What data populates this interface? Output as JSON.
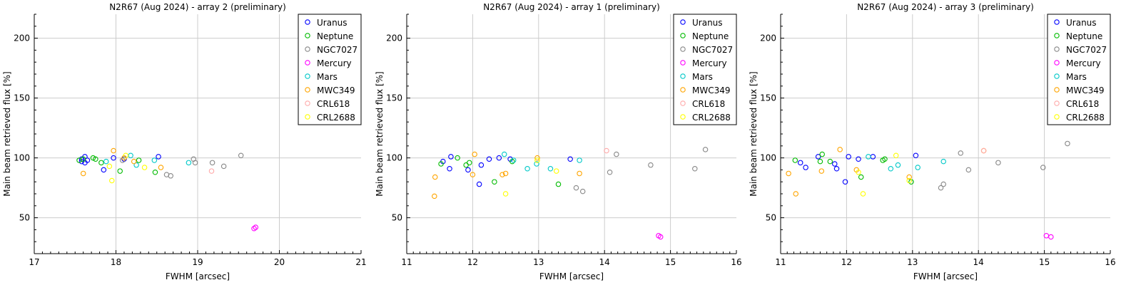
{
  "legend_entries": [
    {
      "name": "Uranus",
      "color": "#0000ff"
    },
    {
      "name": "Neptune",
      "color": "#00bb00"
    },
    {
      "name": "NGC7027",
      "color": "#888888"
    },
    {
      "name": "Mercury",
      "color": "#ff00ff"
    },
    {
      "name": "Mars",
      "color": "#00c8c8"
    },
    {
      "name": "MWC349",
      "color": "#ffa500"
    },
    {
      "name": "CRL618",
      "color": "#ffaaaa"
    },
    {
      "name": "CRL2688",
      "color": "#ffff00"
    }
  ],
  "chart_data": [
    {
      "type": "scatter",
      "title": "N2R67 (Aug 2024) - array 2 (preliminary)",
      "xlabel": "FWHM [arcsec]",
      "ylabel": "Main beam retrieved flux [%]",
      "xlim": [
        17,
        21
      ],
      "ylim": [
        20,
        220
      ],
      "xticks": [
        17,
        18,
        19,
        20,
        21
      ],
      "yticks": [
        50,
        100,
        150,
        200
      ],
      "grid": true,
      "legend": "top-right",
      "series": [
        {
          "name": "Uranus",
          "points": [
            [
              17.58,
              99
            ],
            [
              17.62,
              101
            ],
            [
              17.65,
              98
            ],
            [
              17.62,
              96
            ],
            [
              17.85,
              90
            ],
            [
              17.97,
              100
            ],
            [
              18.1,
              99
            ],
            [
              18.52,
              101
            ],
            [
              17.58,
              97
            ]
          ]
        },
        {
          "name": "Neptune",
          "points": [
            [
              17.55,
              98
            ],
            [
              17.6,
              99
            ],
            [
              17.72,
              100
            ],
            [
              17.75,
              99
            ],
            [
              17.82,
              96
            ],
            [
              18.05,
              89
            ],
            [
              18.28,
              98
            ],
            [
              18.48,
              88
            ]
          ]
        },
        {
          "name": "NGC7027",
          "points": [
            [
              18.08,
              98
            ],
            [
              18.62,
              86
            ],
            [
              18.67,
              85
            ],
            [
              18.95,
              99
            ],
            [
              18.97,
              96
            ],
            [
              19.18,
              96
            ],
            [
              19.32,
              93
            ],
            [
              19.53,
              102
            ]
          ]
        },
        {
          "name": "Mercury",
          "points": [
            [
              19.69,
              41
            ],
            [
              19.71,
              42
            ]
          ]
        },
        {
          "name": "Mars",
          "points": [
            [
              17.88,
              97
            ],
            [
              18.18,
              102
            ],
            [
              18.25,
              94
            ],
            [
              18.47,
              98
            ],
            [
              18.89,
              96
            ]
          ]
        },
        {
          "name": "MWC349",
          "points": [
            [
              17.6,
              87
            ],
            [
              17.97,
              106
            ],
            [
              18.1,
              100
            ],
            [
              18.22,
              97
            ],
            [
              18.55,
              92
            ]
          ]
        },
        {
          "name": "CRL618",
          "points": [
            [
              19.17,
              89
            ]
          ]
        },
        {
          "name": "CRL2688",
          "points": [
            [
              17.92,
              93
            ],
            [
              17.95,
              81
            ],
            [
              18.12,
              102
            ],
            [
              18.35,
              92
            ]
          ]
        }
      ]
    },
    {
      "type": "scatter",
      "title": "N2R67 (Aug 2024) - array 1 (preliminary)",
      "xlabel": "FWHM [arcsec]",
      "ylabel": "Main beam retrieved flux [%]",
      "xlim": [
        11,
        16
      ],
      "ylim": [
        20,
        220
      ],
      "xticks": [
        11,
        12,
        13,
        14,
        15,
        16
      ],
      "yticks": [
        50,
        100,
        150,
        200
      ],
      "grid": true,
      "legend": "top-right",
      "series": [
        {
          "name": "Uranus",
          "points": [
            [
              11.55,
              97
            ],
            [
              11.65,
              91
            ],
            [
              11.67,
              101
            ],
            [
              11.93,
              90
            ],
            [
              12.1,
              78
            ],
            [
              12.13,
              94
            ],
            [
              12.25,
              99
            ],
            [
              12.4,
              100
            ],
            [
              12.57,
              99
            ],
            [
              13.48,
              99
            ]
          ]
        },
        {
          "name": "Neptune",
          "points": [
            [
              11.52,
              95
            ],
            [
              11.77,
              100
            ],
            [
              11.9,
              94
            ],
            [
              11.95,
              96
            ],
            [
              12.33,
              80
            ],
            [
              12.6,
              97
            ],
            [
              13.3,
              78
            ]
          ]
        },
        {
          "name": "NGC7027",
          "points": [
            [
              13.57,
              75
            ],
            [
              13.67,
              72
            ],
            [
              14.08,
              88
            ],
            [
              14.18,
              103
            ],
            [
              14.7,
              94
            ],
            [
              15.37,
              91
            ],
            [
              15.53,
              107
            ]
          ]
        },
        {
          "name": "Mercury",
          "points": [
            [
              14.82,
              35
            ],
            [
              14.85,
              34
            ]
          ]
        },
        {
          "name": "Mars",
          "points": [
            [
              12.48,
              103
            ],
            [
              12.62,
              98
            ],
            [
              12.83,
              91
            ],
            [
              12.97,
              95
            ],
            [
              13.18,
              91
            ],
            [
              13.62,
              98
            ]
          ]
        },
        {
          "name": "MWC349",
          "points": [
            [
              11.42,
              68
            ],
            [
              11.43,
              84
            ],
            [
              12.0,
              86
            ],
            [
              12.03,
              103
            ],
            [
              12.45,
              86
            ],
            [
              12.5,
              87
            ],
            [
              12.98,
              100
            ],
            [
              13.62,
              87
            ]
          ]
        },
        {
          "name": "CRL618",
          "points": [
            [
              14.03,
              106
            ]
          ]
        },
        {
          "name": "CRL2688",
          "points": [
            [
              12.5,
              70
            ],
            [
              12.98,
              98
            ],
            [
              13.27,
              89
            ]
          ]
        }
      ]
    },
    {
      "type": "scatter",
      "title": "N2R67 (Aug 2024) - array 3 (preliminary)",
      "xlabel": "FWHM [arcsec]",
      "ylabel": "Main beam retrieved flux [%]",
      "xlim": [
        11,
        16
      ],
      "ylim": [
        20,
        220
      ],
      "xticks": [
        11,
        12,
        13,
        14,
        15,
        16
      ],
      "yticks": [
        50,
        100,
        150,
        200
      ],
      "grid": true,
      "legend": "top-right",
      "series": [
        {
          "name": "Uranus",
          "points": [
            [
              11.3,
              96
            ],
            [
              11.38,
              92
            ],
            [
              11.57,
              101
            ],
            [
              11.82,
              95
            ],
            [
              11.85,
              91
            ],
            [
              11.98,
              80
            ],
            [
              12.03,
              101
            ],
            [
              12.18,
              99
            ],
            [
              12.4,
              101
            ],
            [
              13.05,
              102
            ]
          ]
        },
        {
          "name": "Neptune",
          "points": [
            [
              11.22,
              98
            ],
            [
              11.6,
              97
            ],
            [
              11.63,
              103
            ],
            [
              11.75,
              97
            ],
            [
              12.22,
              84
            ],
            [
              12.55,
              98
            ],
            [
              12.58,
              99
            ],
            [
              12.98,
              80
            ]
          ]
        },
        {
          "name": "NGC7027",
          "points": [
            [
              13.43,
              75
            ],
            [
              13.47,
              78
            ],
            [
              13.73,
              104
            ],
            [
              13.85,
              90
            ],
            [
              14.3,
              96
            ],
            [
              14.98,
              92
            ],
            [
              15.35,
              112
            ]
          ]
        },
        {
          "name": "Mercury",
          "points": [
            [
              15.03,
              35
            ],
            [
              15.1,
              34
            ]
          ]
        },
        {
          "name": "Mars",
          "points": [
            [
              12.33,
              101
            ],
            [
              12.67,
              91
            ],
            [
              12.78,
              94
            ],
            [
              13.08,
              92
            ],
            [
              13.47,
              97
            ]
          ]
        },
        {
          "name": "MWC349",
          "points": [
            [
              11.12,
              87
            ],
            [
              11.23,
              70
            ],
            [
              11.62,
              89
            ],
            [
              11.9,
              107
            ],
            [
              12.15,
              90
            ],
            [
              12.95,
              84
            ],
            [
              14.08,
              106
            ]
          ]
        },
        {
          "name": "CRL618",
          "points": [
            [
              14.08,
              106
            ]
          ]
        },
        {
          "name": "CRL2688",
          "points": [
            [
              12.18,
              88
            ],
            [
              12.25,
              70
            ],
            [
              12.75,
              102
            ],
            [
              12.95,
              81
            ]
          ]
        }
      ]
    }
  ]
}
